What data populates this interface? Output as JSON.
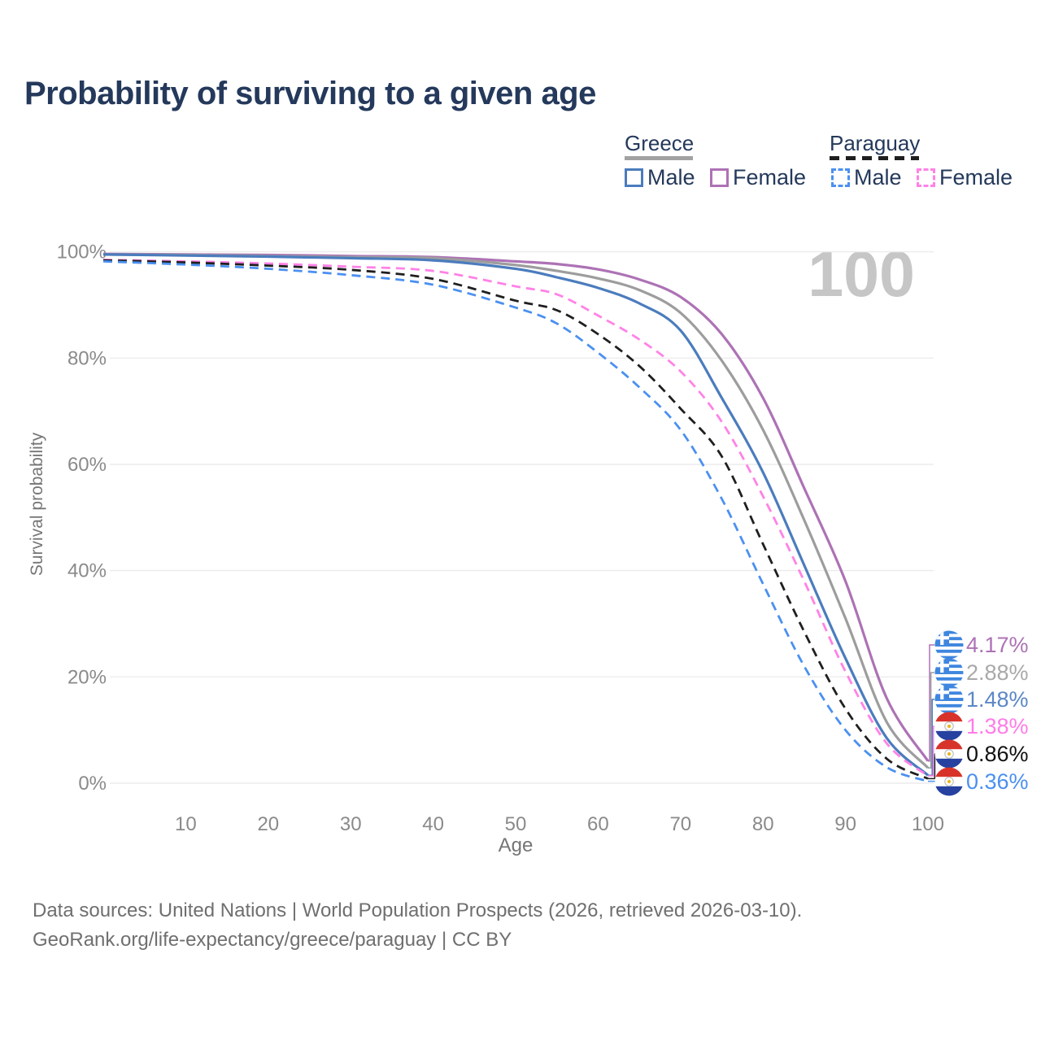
{
  "header": {
    "title": "Probability of surviving to a given age"
  },
  "legend": {
    "greece": {
      "title": "Greece",
      "male_label": "Male",
      "female_label": "Female"
    },
    "paraguay": {
      "title": "Paraguay",
      "male_label": "Male",
      "female_label": "Female"
    }
  },
  "watermark": "100",
  "chart_data": {
    "type": "line",
    "title": "Probability of surviving to a given age",
    "xlabel": "Age",
    "ylabel": "Survival probability",
    "xlim": [
      0,
      100
    ],
    "ylim": [
      0,
      100
    ],
    "grid": "horizontal",
    "legend_position": "top-right",
    "hover_age_label": "100",
    "x_ticks": [
      10,
      20,
      30,
      40,
      50,
      60,
      70,
      80,
      90,
      100
    ],
    "y_tick_values": [
      0,
      20,
      40,
      60,
      80,
      100
    ],
    "y_tick_labels": [
      "0%",
      "20%",
      "40%",
      "60%",
      "80%",
      "100%"
    ],
    "x": [
      0,
      10,
      20,
      30,
      40,
      50,
      55,
      60,
      65,
      70,
      75,
      80,
      85,
      90,
      95,
      100
    ],
    "series": [
      {
        "name": "Greece Female",
        "country": "Greece",
        "sex": "Female",
        "style": "solid",
        "color": "#ad72b5",
        "label_color": "#ad72b5",
        "flag": "greece",
        "end_label": "4.17%",
        "end_value": 4.17,
        "values": [
          99.6,
          99.5,
          99.4,
          99.2,
          99.0,
          98.2,
          97.7,
          96.7,
          94.8,
          91.5,
          84.5,
          72.5,
          55.5,
          38.0,
          16.0,
          4.17
        ]
      },
      {
        "name": "Greece Both sexes",
        "country": "Greece",
        "sex": "Both",
        "style": "solid",
        "color": "#9d9d9d",
        "label_color": "#a9a9a9",
        "flag": "greece",
        "end_label": "2.88%",
        "end_value": 2.88,
        "values": [
          99.5,
          99.4,
          99.2,
          99.0,
          98.8,
          97.5,
          96.4,
          95.0,
          92.8,
          88.5,
          79.5,
          66.5,
          49.5,
          31.0,
          11.5,
          2.88
        ]
      },
      {
        "name": "Greece Male",
        "country": "Greece",
        "sex": "Male",
        "style": "solid",
        "color": "#4b7cbd",
        "label_color": "#5c87c6",
        "flag": "greece",
        "end_label": "1.48%",
        "end_value": 1.48,
        "values": [
          99.5,
          99.3,
          99.1,
          98.8,
          98.4,
          96.8,
          95.2,
          93.2,
          90.3,
          85.2,
          72.5,
          58.5,
          41.0,
          23.5,
          8.5,
          1.48
        ]
      },
      {
        "name": "Paraguay Female",
        "country": "Paraguay",
        "sex": "Female",
        "style": "dashed",
        "color": "#ff82e6",
        "label_color": "#ff7ce8",
        "flag": "paraguay",
        "end_label": "1.38%",
        "end_value": 1.38,
        "values": [
          98.5,
          98.2,
          97.8,
          97.2,
          96.4,
          93.5,
          92.0,
          88.0,
          83.5,
          77.5,
          68.0,
          54.0,
          38.0,
          21.0,
          7.5,
          1.38
        ]
      },
      {
        "name": "Paraguay Both sexes",
        "country": "Paraguay",
        "sex": "Both",
        "style": "dashed",
        "color": "#1f1f1f",
        "label_color": "#121212",
        "flag": "paraguay",
        "end_label": "0.86%",
        "end_value": 0.86,
        "values": [
          98.4,
          98.0,
          97.4,
          96.6,
          94.9,
          90.8,
          89.0,
          84.5,
          78.5,
          70.5,
          61.5,
          45.0,
          28.5,
          14.0,
          4.6,
          0.86
        ]
      },
      {
        "name": "Paraguay Male",
        "country": "Paraguay",
        "sex": "Male",
        "style": "dashed",
        "color": "#4b90f0",
        "label_color": "#4b90f0",
        "flag": "paraguay",
        "end_label": "0.36%",
        "end_value": 0.36,
        "values": [
          98.2,
          97.6,
          96.8,
          95.6,
          93.8,
          89.5,
          86.5,
          81.0,
          74.5,
          66.5,
          53.5,
          37.5,
          22.0,
          10.0,
          3.0,
          0.36
        ]
      }
    ]
  },
  "footer": {
    "line1": "Data sources: United Nations | World Population Prospects (2026, retrieved 2026-03-10).",
    "line2": "GeoRank.org/life-expectancy/greece/paraguay | CC BY"
  }
}
